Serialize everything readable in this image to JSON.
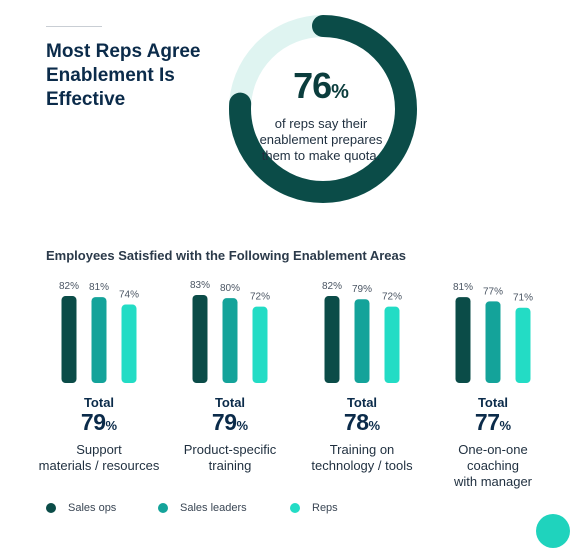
{
  "headline": "Most Reps Agree\nEnablement Is\nEffective",
  "stat": {
    "value": 76,
    "value_text": "76",
    "unit": "%",
    "description": "of reps say their enablement prepares them to make quota."
  },
  "subtitle": "Employees Satisfied with the Following Enablement Areas",
  "colors": {
    "sales_ops": "#0b4c48",
    "sales_leaders": "#14a39a",
    "reps": "#23dcc5",
    "donut_track": "#dff4f1",
    "donut_fill": "#0b4c48"
  },
  "legend": [
    {
      "label": "Sales ops",
      "color": "#0b4c48"
    },
    {
      "label": "Sales leaders",
      "color": "#14a39a"
    },
    {
      "label": "Reps",
      "color": "#23dcc5"
    }
  ],
  "total_label": "Total",
  "chart_data": {
    "type": "bar",
    "categories": [
      "Support materials / resources",
      "Product-specific training",
      "Training on technology / tools",
      "One-on-one coaching with manager"
    ],
    "category_lines": [
      "Support\nmaterials / resources",
      "Product-specific\ntraining",
      "Training on\ntechnology / tools",
      "One-on-one\ncoaching\nwith manager"
    ],
    "series": [
      {
        "name": "Sales ops",
        "values": [
          82,
          83,
          82,
          81
        ],
        "labels": [
          "82%",
          "83%",
          "82%",
          "81%"
        ]
      },
      {
        "name": "Sales leaders",
        "values": [
          81,
          80,
          79,
          77
        ],
        "labels": [
          "81%",
          "80%",
          "79%",
          "77%"
        ]
      },
      {
        "name": "Reps",
        "values": [
          74,
          72,
          72,
          71
        ],
        "labels": [
          "74%",
          "72%",
          "72%",
          "71%"
        ]
      }
    ],
    "totals": [
      79,
      79,
      78,
      77
    ],
    "totals_text": [
      "79",
      "79",
      "78",
      "77"
    ],
    "unit": "%",
    "legend_position": "bottom",
    "grid": false
  }
}
